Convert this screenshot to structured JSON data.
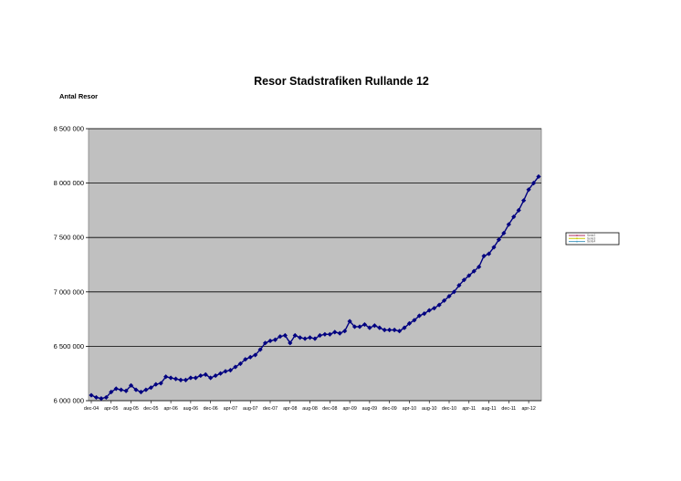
{
  "chart_data": {
    "type": "line",
    "title": "Resor Stadstrafiken Rullande 12",
    "ylabel": "Antal Resor",
    "xlabel": "",
    "ylim": [
      6000000,
      8500000
    ],
    "yticks": [
      6000000,
      6500000,
      7000000,
      7500000,
      8000000,
      8500000
    ],
    "ytick_labels": [
      "6 000 000",
      "6 500 000",
      "7 000 000",
      "7 500 000",
      "8 000 000",
      "8 500 000"
    ],
    "xtick_labels": [
      "dec-04",
      "apr-05",
      "aug-05",
      "dec-05",
      "apr-06",
      "aug-06",
      "dec-06",
      "apr-07",
      "aug-07",
      "dec-07",
      "apr-08",
      "aug-08",
      "dec-08",
      "apr-09",
      "aug-09",
      "dec-09",
      "apr-10",
      "aug-10",
      "dec-10",
      "apr-11",
      "aug-11",
      "dec-11",
      "apr-12"
    ],
    "grid": true,
    "plot_background": "#c0c0c0",
    "legend": {
      "placement": "right",
      "entries": [
        "Serie2",
        "Serie3",
        "Serie4"
      ],
      "colors": [
        "#b03060",
        "#c8c800",
        "#4a9cc0"
      ]
    },
    "series": [
      {
        "color": "#000080",
        "x_start": "dec-04",
        "x_step": "month",
        "values": [
          6050000,
          6030000,
          6020000,
          6030000,
          6080000,
          6110000,
          6100000,
          6090000,
          6140000,
          6100000,
          6080000,
          6100000,
          6120000,
          6150000,
          6160000,
          6220000,
          6210000,
          6200000,
          6190000,
          6190000,
          6210000,
          6210000,
          6230000,
          6240000,
          6210000,
          6230000,
          6250000,
          6270000,
          6280000,
          6310000,
          6340000,
          6380000,
          6400000,
          6420000,
          6470000,
          6530000,
          6550000,
          6560000,
          6590000,
          6600000,
          6530000,
          6600000,
          6580000,
          6570000,
          6580000,
          6570000,
          6600000,
          6610000,
          6610000,
          6630000,
          6620000,
          6640000,
          6730000,
          6680000,
          6680000,
          6700000,
          6670000,
          6690000,
          6670000,
          6650000,
          6650000,
          6650000,
          6640000,
          6670000,
          6710000,
          6740000,
          6780000,
          6800000,
          6830000,
          6850000,
          6880000,
          6920000,
          6960000,
          7000000,
          7060000,
          7110000,
          7150000,
          7190000,
          7230000,
          7330000,
          7350000,
          7410000,
          7480000,
          7540000,
          7620000,
          7690000,
          7750000,
          7840000,
          7940000,
          8000000,
          8060000
        ]
      }
    ]
  }
}
